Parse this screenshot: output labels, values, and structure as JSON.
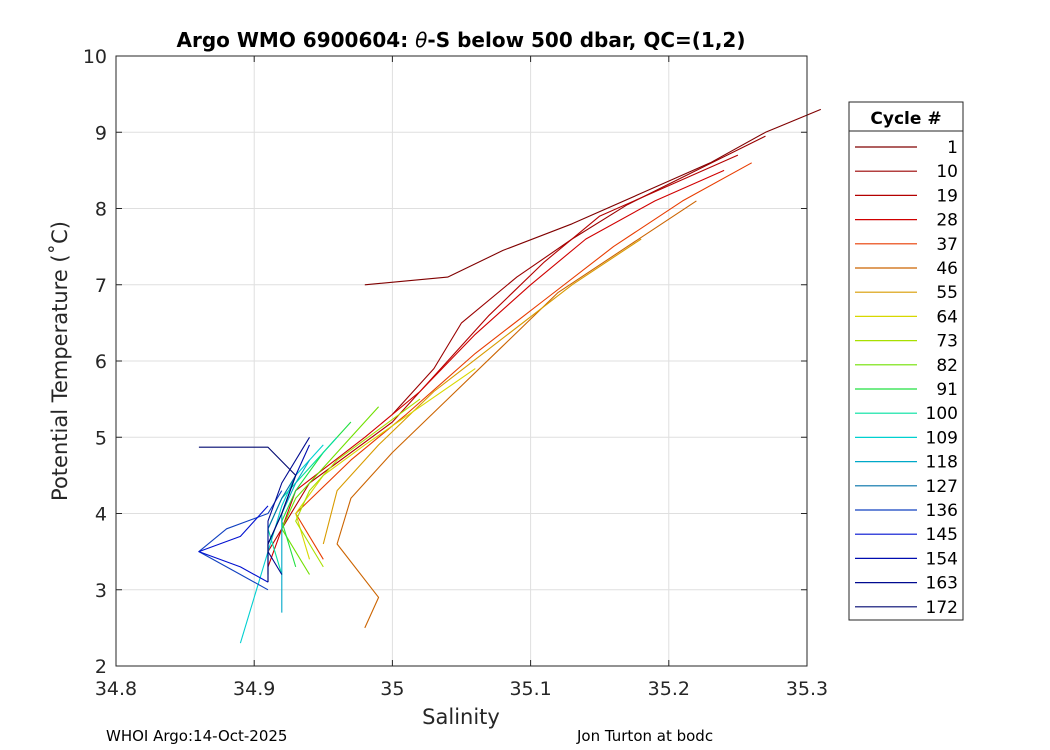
{
  "chart_data": {
    "type": "line",
    "title_prefix": "Argo WMO 6900604: ",
    "title_theta": "θ",
    "title_suffix": "-S below 500 dbar,  QC=(1,2)",
    "xlabel": "Salinity",
    "ylabel": "Potential Temperature (˚C)",
    "xlim": [
      34.8,
      35.3
    ],
    "ylim": [
      2,
      10
    ],
    "xticks": [
      34.8,
      34.9,
      35,
      35.1,
      35.2,
      35.3
    ],
    "xtick_labels": [
      "34.8",
      "34.9",
      "35",
      "35.1",
      "35.2",
      "35.3"
    ],
    "yticks": [
      2,
      3,
      4,
      5,
      6,
      7,
      8,
      9,
      10
    ],
    "ytick_labels": [
      "2",
      "3",
      "4",
      "5",
      "6",
      "7",
      "8",
      "9",
      "10"
    ],
    "grid": true,
    "legend_title": "Cycle #",
    "legend_position": "right",
    "series": [
      {
        "name": "1",
        "color": "#800000",
        "x": [
          35.31,
          35.27,
          35.23,
          35.18,
          35.13,
          35.08,
          35.04,
          35.01,
          34.98
        ],
        "y": [
          9.3,
          9.0,
          8.6,
          8.2,
          7.8,
          7.45,
          7.1,
          7.05,
          7.0
        ]
      },
      {
        "name": "10",
        "color": "#9a0000",
        "x": [
          35.27,
          35.22,
          35.17,
          35.13,
          35.09,
          35.05,
          35.03,
          35.0
        ],
        "y": [
          8.95,
          8.5,
          8.05,
          7.6,
          7.1,
          6.5,
          5.9,
          5.3
        ]
      },
      {
        "name": "19",
        "color": "#b40000",
        "x": [
          35.25,
          35.2,
          35.15,
          35.11,
          35.07,
          35.04,
          35.0,
          34.94,
          34.91
        ],
        "y": [
          8.7,
          8.3,
          7.9,
          7.3,
          6.6,
          6.0,
          5.2,
          4.4,
          3.5
        ]
      },
      {
        "name": "28",
        "color": "#d00000",
        "x": [
          35.24,
          35.19,
          35.14,
          35.1,
          35.06,
          35.02,
          34.98,
          34.93,
          34.91
        ],
        "y": [
          8.5,
          8.1,
          7.6,
          7.0,
          6.35,
          5.6,
          5.0,
          4.3,
          3.3
        ]
      },
      {
        "name": "37",
        "color": "#e83c00",
        "x": [
          35.26,
          35.21,
          35.16,
          35.11,
          35.06,
          35.01,
          34.97,
          34.93,
          34.95
        ],
        "y": [
          8.6,
          8.1,
          7.5,
          6.8,
          6.1,
          5.3,
          4.7,
          4.0,
          3.4
        ]
      },
      {
        "name": "46",
        "color": "#cc6400",
        "x": [
          35.22,
          35.17,
          35.12,
          35.08,
          35.04,
          35.0,
          34.97,
          34.96,
          34.99,
          34.98
        ],
        "y": [
          8.1,
          7.5,
          6.9,
          6.2,
          5.5,
          4.8,
          4.2,
          3.6,
          2.9,
          2.5
        ]
      },
      {
        "name": "55",
        "color": "#d89b00",
        "x": [
          35.18,
          35.13,
          35.08,
          35.03,
          34.99,
          34.96,
          34.95
        ],
        "y": [
          7.6,
          7.0,
          6.3,
          5.6,
          4.9,
          4.3,
          3.6
        ]
      },
      {
        "name": "64",
        "color": "#d8d800",
        "x": [
          35.06,
          35.02,
          34.98,
          34.95,
          34.93,
          34.94
        ],
        "y": [
          5.9,
          5.4,
          4.9,
          4.5,
          4.0,
          3.4
        ]
      },
      {
        "name": "73",
        "color": "#a8e000",
        "x": [
          35.02,
          34.99,
          34.96,
          34.94,
          34.93,
          34.95
        ],
        "y": [
          5.5,
          5.1,
          4.7,
          4.3,
          3.9,
          3.3
        ]
      },
      {
        "name": "82",
        "color": "#70e000",
        "x": [
          34.99,
          34.97,
          34.95,
          34.93,
          34.92,
          34.94
        ],
        "y": [
          5.4,
          5.0,
          4.6,
          4.2,
          3.8,
          3.2
        ]
      },
      {
        "name": "91",
        "color": "#20e040",
        "x": [
          34.97,
          34.95,
          34.93,
          34.92,
          34.93
        ],
        "y": [
          5.2,
          4.8,
          4.3,
          3.9,
          3.3
        ]
      },
      {
        "name": "100",
        "color": "#00e0a0",
        "x": [
          34.96,
          34.94,
          34.92,
          34.91,
          34.92
        ],
        "y": [
          5.0,
          4.6,
          4.2,
          3.8,
          3.2
        ]
      },
      {
        "name": "109",
        "color": "#00d0d0",
        "x": [
          34.95,
          34.93,
          34.92,
          34.91,
          34.9,
          34.89
        ],
        "y": [
          4.9,
          4.5,
          4.1,
          3.5,
          2.9,
          2.3
        ]
      },
      {
        "name": "118",
        "color": "#00a8c8",
        "x": [
          34.94,
          34.93,
          34.92,
          34.92,
          34.92
        ],
        "y": [
          4.7,
          4.4,
          4.0,
          3.5,
          2.7
        ]
      },
      {
        "name": "127",
        "color": "#0070a8",
        "x": [
          34.93,
          34.92,
          34.91,
          34.91
        ],
        "y": [
          4.5,
          4.2,
          3.8,
          3.2
        ]
      },
      {
        "name": "136",
        "color": "#1040c0",
        "x": [
          34.92,
          34.91,
          34.88,
          34.86,
          34.89,
          34.91
        ],
        "y": [
          4.3,
          4.0,
          3.8,
          3.5,
          3.2,
          3.0
        ]
      },
      {
        "name": "145",
        "color": "#0010d0",
        "x": [
          34.91,
          34.9,
          34.89,
          34.86,
          34.89,
          34.91
        ],
        "y": [
          4.1,
          3.9,
          3.7,
          3.5,
          3.3,
          3.1
        ]
      },
      {
        "name": "154",
        "color": "#000cb0",
        "x": [
          34.94,
          34.93,
          34.92,
          34.91,
          34.91
        ],
        "y": [
          4.9,
          4.5,
          4.0,
          3.6,
          3.1
        ]
      },
      {
        "name": "163",
        "color": "#000a90",
        "x": [
          34.94,
          34.92,
          34.91,
          34.91,
          34.92
        ],
        "y": [
          5.0,
          4.4,
          3.9,
          3.5,
          3.2
        ]
      },
      {
        "name": "172",
        "color": "#000870",
        "x": [
          34.86,
          34.91,
          34.93,
          34.92,
          34.91,
          34.91
        ],
        "y": [
          4.87,
          4.87,
          4.5,
          4.0,
          3.6,
          3.1
        ]
      }
    ]
  },
  "footer": {
    "left": "WHOI Argo:14-Oct-2025",
    "right": "Jon Turton at bodc"
  }
}
